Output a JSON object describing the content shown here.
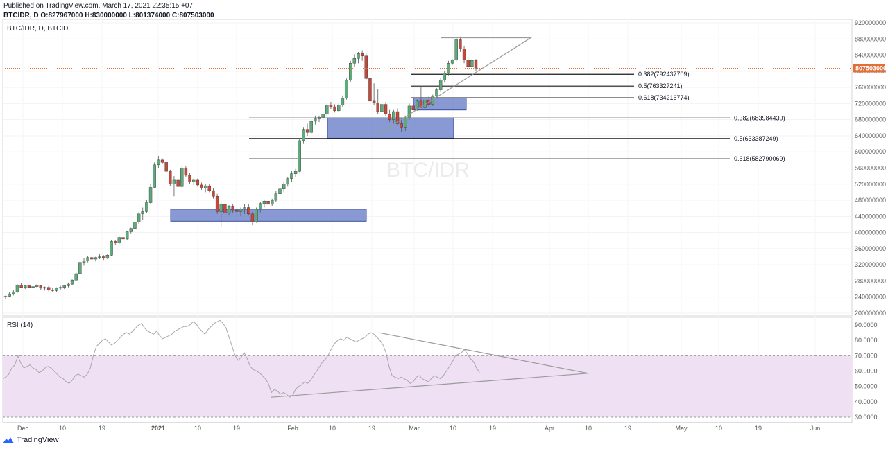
{
  "header": {
    "published": "Published on TradingView.com, March 17, 2021 22:35:15 +07",
    "ohlc": "BTCIDR, D O:827967000 H:830000000 L:801374000 C:807503000"
  },
  "chart_data": [
    {
      "type": "candlestick",
      "title": "BTC/IDR, D, BTCID",
      "watermark": "BTC/IDR",
      "y_ticks": [
        "920000000",
        "880000000",
        "840000000",
        "800000000",
        "760000000",
        "720000000",
        "680000000",
        "640000000",
        "600000000",
        "560000000",
        "520000000",
        "480000000",
        "440000000",
        "400000000",
        "360000000",
        "320000000",
        "280000000",
        "240000000",
        "200000000"
      ],
      "ylim": [
        200000000,
        920000000
      ],
      "last_price_label": "807503000",
      "last_price": 807503000,
      "colors": {
        "up": "#5eaa7a",
        "down": "#c8463a",
        "box": "#6b7fc8",
        "pattern": "#9b9b9b",
        "last_price": "#e06f3a",
        "rsi": "#a7a7a7",
        "rsi_band": "#efe0f3"
      },
      "x_labels": [
        "Dec",
        "10",
        "19",
        "2021",
        "10",
        "19",
        "Feb",
        "10",
        "19",
        "Mar",
        "10",
        "19",
        "Apr",
        "10",
        "19",
        "May",
        "10",
        "19",
        "Jun"
      ],
      "fib_levels": [
        {
          "label": "0.382(792437709)",
          "value": 792437709
        },
        {
          "label": "0.5(763327241)",
          "value": 763327241
        },
        {
          "label": "0.618(734216774)",
          "value": 734216774
        },
        {
          "label": "0.382(683984430)",
          "value": 683984430
        },
        {
          "label": "0.5(633387249)",
          "value": 633387249
        },
        {
          "label": "0.618(582790069)",
          "value": 582790069
        }
      ],
      "zones": [
        {
          "low": 428000000,
          "high": 458000000
        },
        {
          "low": 634000000,
          "high": 684000000
        },
        {
          "low": 704000000,
          "high": 734000000
        }
      ],
      "candles": [
        [
          240,
          244,
          236,
          242
        ],
        [
          242,
          252,
          240,
          248
        ],
        [
          248,
          258,
          244,
          252
        ],
        [
          252,
          272,
          250,
          270
        ],
        [
          270,
          274,
          262,
          264
        ],
        [
          264,
          270,
          260,
          268
        ],
        [
          268,
          270,
          262,
          264
        ],
        [
          264,
          268,
          258,
          266
        ],
        [
          266,
          272,
          262,
          268
        ],
        [
          268,
          270,
          258,
          262
        ],
        [
          262,
          266,
          256,
          264
        ],
        [
          264,
          268,
          254,
          258
        ],
        [
          258,
          262,
          252,
          256
        ],
        [
          256,
          264,
          252,
          262
        ],
        [
          262,
          268,
          258,
          264
        ],
        [
          264,
          270,
          260,
          268
        ],
        [
          268,
          276,
          264,
          272
        ],
        [
          272,
          284,
          270,
          282
        ],
        [
          282,
          302,
          280,
          298
        ],
        [
          298,
          330,
          296,
          326
        ],
        [
          326,
          336,
          318,
          330
        ],
        [
          330,
          342,
          326,
          338
        ],
        [
          338,
          344,
          332,
          334
        ],
        [
          334,
          340,
          328,
          338
        ],
        [
          338,
          346,
          334,
          340
        ],
        [
          340,
          344,
          332,
          336
        ],
        [
          336,
          346,
          334,
          344
        ],
        [
          344,
          382,
          342,
          378
        ],
        [
          378,
          382,
          370,
          374
        ],
        [
          374,
          390,
          372,
          388
        ],
        [
          388,
          392,
          380,
          384
        ],
        [
          384,
          404,
          382,
          402
        ],
        [
          402,
          412,
          398,
          410
        ],
        [
          410,
          430,
          406,
          426
        ],
        [
          426,
          450,
          420,
          446
        ],
        [
          446,
          462,
          430,
          452
        ],
        [
          452,
          480,
          448,
          474
        ],
        [
          474,
          520,
          470,
          512
        ],
        [
          512,
          574,
          510,
          568
        ],
        [
          568,
          590,
          560,
          580
        ],
        [
          580,
          584,
          570,
          574
        ],
        [
          574,
          576,
          548,
          552
        ],
        [
          552,
          556,
          516,
          520
        ],
        [
          520,
          540,
          490,
          530
        ],
        [
          530,
          536,
          508,
          514
        ],
        [
          514,
          566,
          512,
          560
        ],
        [
          560,
          564,
          538,
          542
        ],
        [
          542,
          548,
          520,
          526
        ],
        [
          526,
          534,
          518,
          530
        ],
        [
          530,
          534,
          514,
          518
        ],
        [
          518,
          524,
          506,
          510
        ],
        [
          510,
          520,
          500,
          516
        ],
        [
          516,
          520,
          500,
          504
        ],
        [
          504,
          510,
          484,
          490
        ],
        [
          490,
          496,
          446,
          452
        ],
        [
          452,
          474,
          416,
          470
        ],
        [
          470,
          482,
          440,
          448
        ],
        [
          448,
          468,
          444,
          464
        ],
        [
          464,
          470,
          448,
          456
        ],
        [
          456,
          464,
          440,
          452
        ],
        [
          452,
          462,
          440,
          458
        ],
        [
          458,
          470,
          446,
          462
        ],
        [
          462,
          470,
          442,
          446
        ],
        [
          446,
          452,
          418,
          426
        ],
        [
          426,
          462,
          424,
          458
        ],
        [
          458,
          476,
          450,
          472
        ],
        [
          472,
          482,
          462,
          478
        ],
        [
          478,
          482,
          466,
          470
        ],
        [
          470,
          484,
          466,
          480
        ],
        [
          480,
          504,
          476,
          496
        ],
        [
          496,
          512,
          490,
          508
        ],
        [
          508,
          526,
          500,
          520
        ],
        [
          520,
          538,
          514,
          534
        ],
        [
          534,
          552,
          526,
          546
        ],
        [
          546,
          558,
          538,
          552
        ],
        [
          552,
          634,
          550,
          628
        ],
        [
          628,
          660,
          620,
          656
        ],
        [
          656,
          670,
          640,
          648
        ],
        [
          648,
          680,
          644,
          676
        ],
        [
          676,
          690,
          668,
          682
        ],
        [
          682,
          690,
          674,
          686
        ],
        [
          686,
          698,
          680,
          694
        ],
        [
          694,
          720,
          690,
          716
        ],
        [
          716,
          724,
          706,
          712
        ],
        [
          712,
          718,
          698,
          702
        ],
        [
          702,
          720,
          698,
          716
        ],
        [
          716,
          740,
          712,
          734
        ],
        [
          734,
          782,
          730,
          778
        ],
        [
          778,
          826,
          774,
          820
        ],
        [
          820,
          842,
          812,
          832
        ],
        [
          832,
          848,
          820,
          844
        ],
        [
          844,
          852,
          826,
          838
        ],
        [
          838,
          844,
          778,
          782
        ],
        [
          782,
          796,
          700,
          726
        ],
        [
          726,
          770,
          716,
          722
        ],
        [
          722,
          756,
          694,
          700
        ],
        [
          700,
          730,
          690,
          718
        ],
        [
          718,
          724,
          688,
          694
        ],
        [
          694,
          704,
          674,
          680
        ],
        [
          680,
          704,
          670,
          700
        ],
        [
          700,
          708,
          666,
          670
        ],
        [
          670,
          684,
          650,
          660
        ],
        [
          660,
          690,
          652,
          684
        ],
        [
          684,
          720,
          680,
          714
        ],
        [
          714,
          724,
          700,
          704
        ],
        [
          704,
          730,
          702,
          726
        ],
        [
          726,
          760,
          714,
          710
        ],
        [
          710,
          734,
          700,
          728
        ],
        [
          728,
          740,
          712,
          718
        ],
        [
          718,
          742,
          714,
          738
        ],
        [
          738,
          758,
          732,
          754
        ],
        [
          754,
          784,
          748,
          778
        ],
        [
          778,
          800,
          772,
          796
        ],
        [
          796,
          826,
          790,
          820
        ],
        [
          820,
          830,
          816,
          828
        ],
        [
          828,
          882,
          824,
          878
        ],
        [
          878,
          886,
          848,
          856
        ],
        [
          856,
          862,
          820,
          828
        ],
        [
          828,
          836,
          800,
          812
        ],
        [
          812,
          830,
          802,
          827
        ],
        [
          827,
          830,
          801,
          807.5
        ]
      ],
      "pattern_upper": {
        "x_index": 111,
        "value": 883000000,
        "end_date_index": 134
      },
      "pattern_lower_start": {
        "x_index": 95,
        "value": 644000000
      }
    },
    {
      "type": "line",
      "title": "RSI (14)",
      "y_ticks": [
        "90.0000",
        "80.0000",
        "70.0000",
        "60.0000",
        "50.0000",
        "40.0000",
        "30.0000"
      ],
      "ylim": [
        27,
        93
      ],
      "band": [
        30,
        70
      ],
      "values": [
        55,
        56,
        58,
        62,
        64,
        70,
        65,
        62,
        63,
        64,
        62,
        61,
        59,
        60,
        62,
        63,
        62,
        60,
        58,
        56,
        55,
        53,
        52,
        54,
        57,
        58,
        57,
        56,
        58,
        62,
        70,
        76,
        78,
        80,
        81,
        79,
        77,
        78,
        80,
        82,
        84,
        85,
        84,
        86,
        88,
        90,
        91,
        88,
        86,
        85,
        84,
        86,
        83,
        81,
        82,
        83,
        84,
        86,
        87,
        88,
        89,
        89,
        90,
        92,
        91,
        88,
        86,
        84,
        87,
        89,
        91,
        92,
        93,
        91,
        88,
        82,
        76,
        70,
        67,
        69,
        72,
        68,
        63,
        61,
        60,
        59,
        57,
        55,
        52,
        46,
        48,
        47,
        45,
        46,
        45,
        43,
        44,
        48,
        50,
        51,
        53,
        52,
        54,
        57,
        60,
        63,
        66,
        68,
        71,
        75,
        78,
        80,
        81,
        80,
        82,
        81,
        80,
        79,
        80,
        81,
        82,
        84,
        85,
        84,
        82,
        80,
        77,
        72,
        63,
        57,
        56,
        55,
        56,
        55,
        54,
        52,
        53,
        56,
        57,
        55,
        54,
        53,
        55,
        57,
        56,
        55,
        57,
        60,
        63,
        66,
        70,
        71,
        72,
        74,
        71,
        68,
        66,
        62,
        59
      ],
      "triangle": {
        "top": 85,
        "bottom": 43,
        "apex": 58.5
      }
    }
  ],
  "footer": {
    "brand": "TradingView"
  }
}
